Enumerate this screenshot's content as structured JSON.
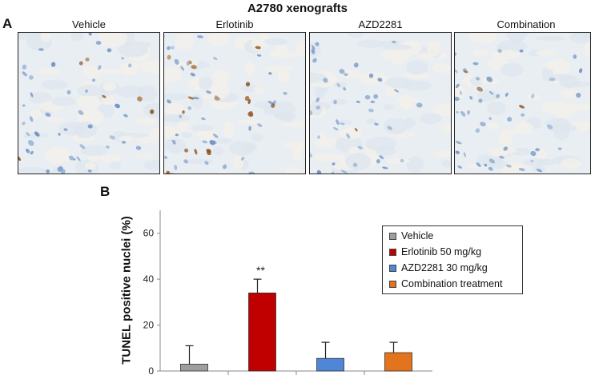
{
  "figure": {
    "title": "A2780 xenografts",
    "panel_a_label": "A",
    "panel_b_label": "B",
    "images": [
      {
        "label": "Vehicle",
        "brown_density": 0.12,
        "seed": 11
      },
      {
        "label": "Erlotinib",
        "brown_density": 0.35,
        "seed": 23
      },
      {
        "label": "AZD2281",
        "brown_density": 0.02,
        "seed": 37
      },
      {
        "label": "Combination",
        "brown_density": 0.04,
        "seed": 51
      }
    ]
  },
  "chart_data": {
    "type": "bar",
    "ylabel": "TUNEL positive nuclei (%)",
    "xlabel": "",
    "ylim": [
      0,
      70
    ],
    "yticks": [
      0,
      20,
      40,
      60
    ],
    "categories": [
      "Vehicle",
      "Erlotinib 50 mg/kg",
      "AZD2281 30 mg/kg",
      "Combination treatment"
    ],
    "values": [
      3,
      34,
      5.5,
      8
    ],
    "errors": [
      8,
      6,
      7,
      4.5
    ],
    "colors": [
      "#9e9e9e",
      "#c00000",
      "#4f86d6",
      "#e4731d"
    ],
    "annotations": [
      {
        "category": "Erlotinib 50 mg/kg",
        "text": "**"
      }
    ],
    "legend": {
      "placement": "top-right",
      "entries": [
        {
          "label": "Vehicle",
          "color": "#9e9e9e"
        },
        {
          "label": "Erlotinib 50 mg/kg",
          "color": "#c00000"
        },
        {
          "label": "AZD2281 30 mg/kg",
          "color": "#4f86d6"
        },
        {
          "label": "Combination treatment",
          "color": "#e4731d"
        }
      ]
    }
  }
}
